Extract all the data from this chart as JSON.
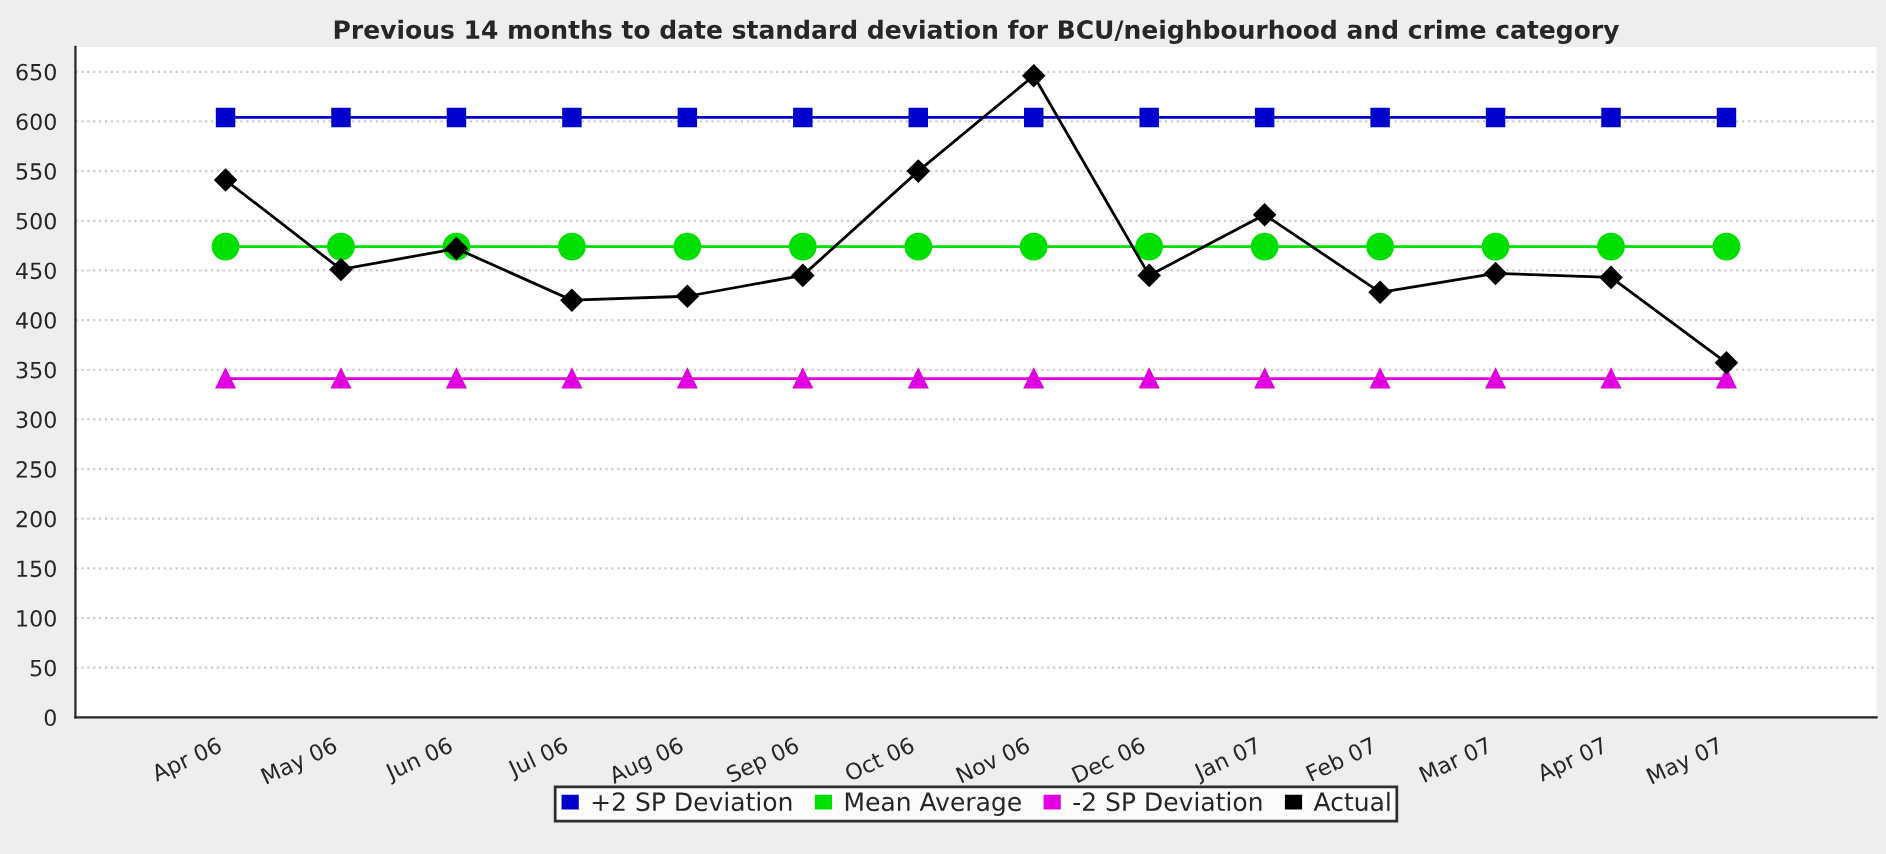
{
  "chart_data": {
    "type": "line",
    "title": "Previous 14 months to date standard deviation for BCU/neighbourhood and crime category",
    "categories": [
      "Apr 06",
      "May 06",
      "Jun 06",
      "Jul 06",
      "Aug 06",
      "Sep 06",
      "Oct 06",
      "Nov 06",
      "Dec 06",
      "Jan 07",
      "Feb 07",
      "Mar 07",
      "Apr 07",
      "May 07"
    ],
    "series": [
      {
        "name": "+2 SP Deviation",
        "color": "#0000cc",
        "marker": "square",
        "values": [
          604,
          604,
          604,
          604,
          604,
          604,
          604,
          604,
          604,
          604,
          604,
          604,
          604,
          604
        ]
      },
      {
        "name": "Mean Average",
        "color": "#00e000",
        "marker": "circle",
        "values": [
          474,
          474,
          474,
          474,
          474,
          474,
          474,
          474,
          474,
          474,
          474,
          474,
          474,
          474
        ]
      },
      {
        "name": "-2 SP Deviation",
        "color": "#e000e0",
        "marker": "triangle",
        "values": [
          341,
          341,
          341,
          341,
          341,
          341,
          341,
          341,
          341,
          341,
          341,
          341,
          341,
          341
        ]
      },
      {
        "name": "Actual",
        "color": "#000000",
        "marker": "diamond",
        "values": [
          541,
          451,
          472,
          420,
          424,
          445,
          550,
          646,
          445,
          506,
          428,
          447,
          443,
          357
        ]
      }
    ],
    "ylim": [
      0,
      675
    ],
    "yticks": [
      0,
      50,
      100,
      150,
      200,
      250,
      300,
      350,
      400,
      450,
      500,
      550,
      600,
      650
    ],
    "grid": "y",
    "legend": "bottom",
    "line_style": "solid"
  }
}
